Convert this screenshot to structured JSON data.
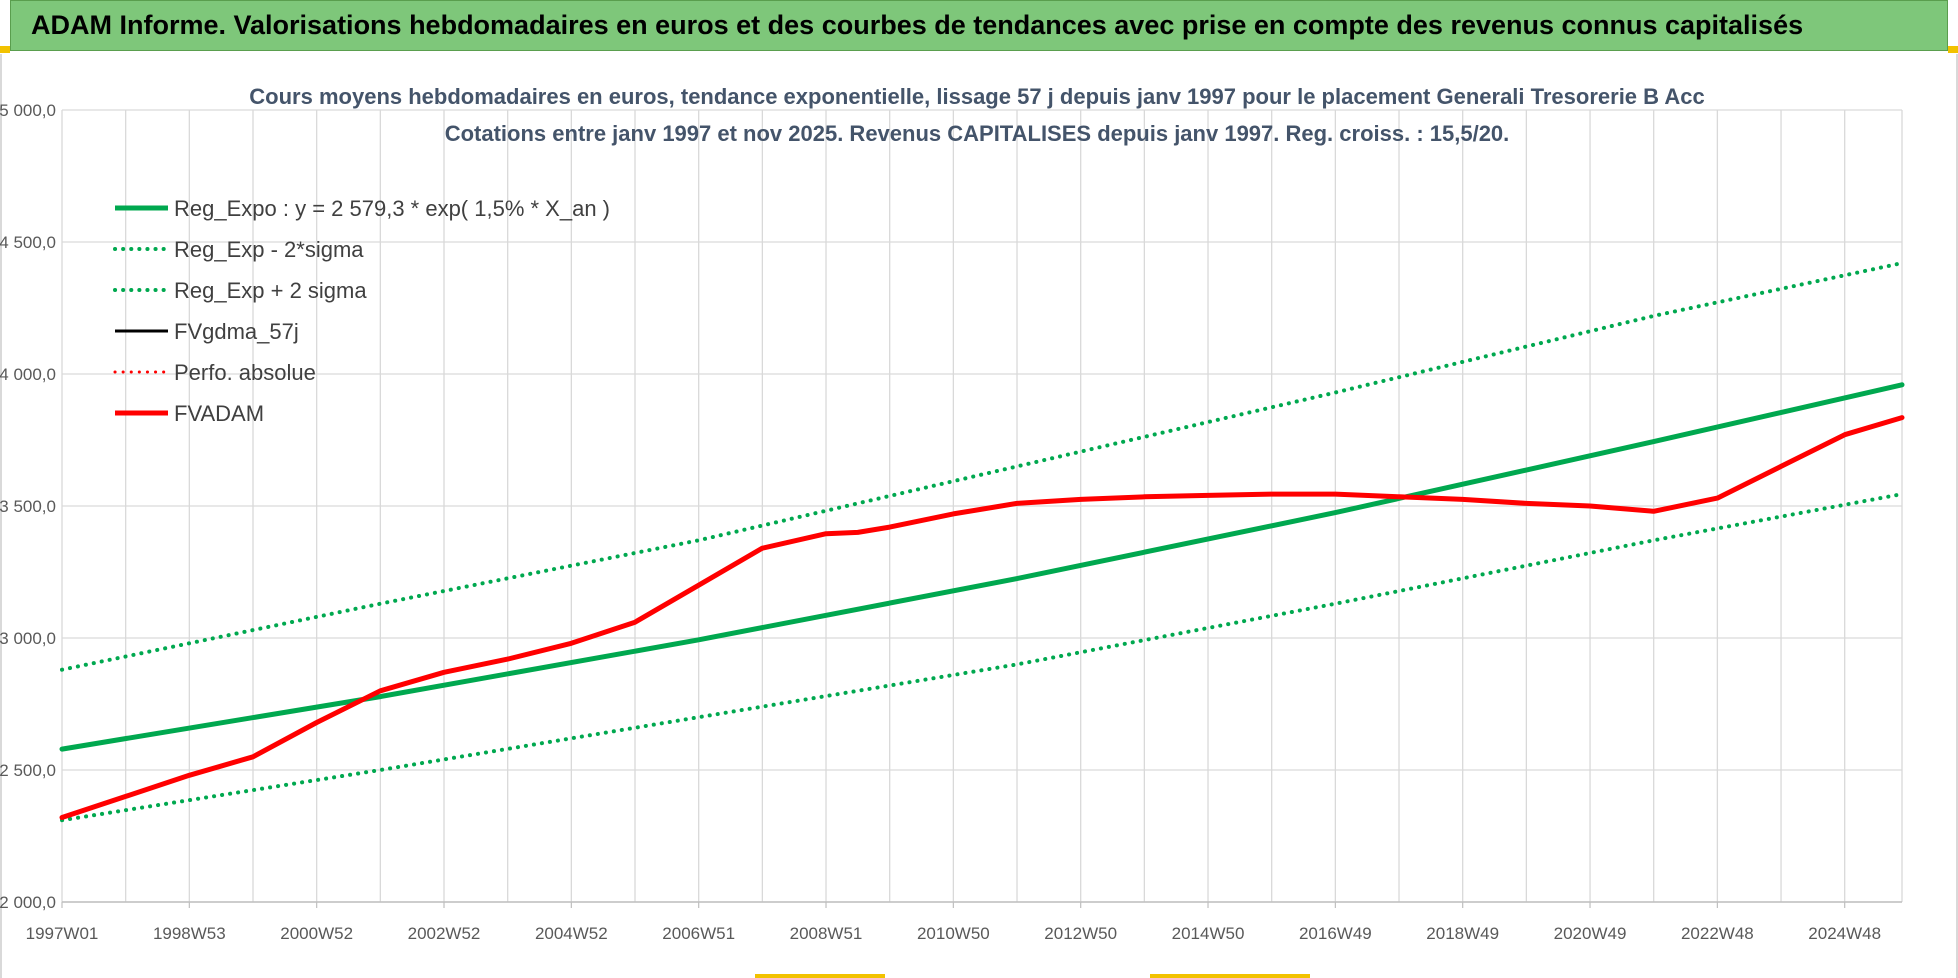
{
  "banner": {
    "text": "ADAM Informe. Valorisations hebdomadaires en euros et des courbes de tendances avec prise en compte des revenus connus capitalisés",
    "background": "#7ec77a",
    "corner_color": "#f2c200"
  },
  "chart_data": {
    "type": "line",
    "title": [
      "Cours moyens hebdomadaires en euros, tendance exponentielle, lissage 57 j depuis janv 1997 pour le placement Generali Tresorerie B Acc",
      "Cotations entre janv 1997 et nov 2025. Revenus CAPITALISES depuis janv 1997. Reg. croiss. : 15,5/20."
    ],
    "xlabel": "",
    "ylabel": "",
    "xlim": [
      1997.0,
      2025.9
    ],
    "ylim": [
      2000,
      5000
    ],
    "grid": true,
    "legend_position": "top-left",
    "y_ticks": [
      2000,
      2500,
      3000,
      3500,
      4000,
      4500,
      5000
    ],
    "y_tick_labels": [
      "2 000,0",
      "2 500,0",
      "3 000,0",
      "3 500,0",
      "4 000,0",
      "4 500,0",
      "5 000,0"
    ],
    "x_ticks": [
      1997.0,
      1999.0,
      2001.0,
      2003.0,
      2005.0,
      2007.0,
      2009.0,
      2011.0,
      2013.0,
      2015.0,
      2017.0,
      2019.0,
      2021.0,
      2023.0,
      2025.0
    ],
    "x_tick_labels": [
      "1997W01",
      "1998W53",
      "2000W52",
      "2002W52",
      "2004W52",
      "2006W51",
      "2008W51",
      "2010W50",
      "2012W50",
      "2014W50",
      "2016W49",
      "2018W49",
      "2020W49",
      "2022W48",
      "2024W48"
    ],
    "series": [
      {
        "name": "Reg_Expo : y = 2 579,3 * exp( 1,5% *  X_an )",
        "color": "#00a84f",
        "style": "solid",
        "width": 5,
        "x": [
          1997.0,
          2002.0,
          2007.0,
          2012.0,
          2017.0,
          2022.0,
          2025.9
        ],
        "values": [
          2579,
          2778,
          2993,
          3225,
          3475,
          3744,
          3959
        ]
      },
      {
        "name": "Reg_Exp - 2*sigma",
        "color": "#00a84f",
        "style": "dotted",
        "width": 4,
        "x": [
          1997.0,
          2002.0,
          2007.0,
          2012.0,
          2017.0,
          2022.0,
          2025.9
        ],
        "values": [
          2310,
          2500,
          2700,
          2900,
          3130,
          3370,
          3545
        ]
      },
      {
        "name": "Reg_Exp + 2 sigma",
        "color": "#00a84f",
        "style": "dotted",
        "width": 4,
        "x": [
          1997.0,
          2002.0,
          2007.0,
          2012.0,
          2017.0,
          2022.0,
          2025.9
        ],
        "values": [
          2880,
          3130,
          3370,
          3650,
          3930,
          4220,
          4420
        ]
      },
      {
        "name": "FVgdma_57j",
        "color": "#000000",
        "style": "solid",
        "width": 3,
        "x": [],
        "values": []
      },
      {
        "name": "Perfo. absolue",
        "color": "#ff0000",
        "style": "dotted",
        "width": 3,
        "x": [],
        "values": []
      },
      {
        "name": "FVADAM",
        "color": "#ff0000",
        "style": "solid",
        "width": 5,
        "x": [
          1997.0,
          1998.0,
          1999.0,
          2000.0,
          2001.0,
          2002.0,
          2003.0,
          2004.0,
          2005.0,
          2006.0,
          2007.0,
          2008.0,
          2009.0,
          2009.5,
          2010.0,
          2011.0,
          2012.0,
          2013.0,
          2014.0,
          2015.0,
          2016.0,
          2017.0,
          2018.0,
          2019.0,
          2020.0,
          2021.0,
          2022.0,
          2023.0,
          2024.0,
          2025.0,
          2025.9
        ],
        "values": [
          2320,
          2400,
          2480,
          2550,
          2680,
          2800,
          2870,
          2920,
          2980,
          3060,
          3200,
          3340,
          3395,
          3400,
          3420,
          3470,
          3510,
          3525,
          3535,
          3540,
          3545,
          3545,
          3535,
          3525,
          3510,
          3500,
          3480,
          3530,
          3650,
          3770,
          3835
        ]
      }
    ]
  }
}
